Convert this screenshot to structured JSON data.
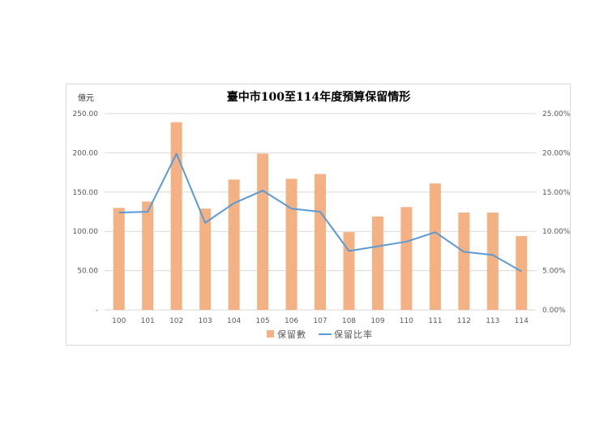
{
  "chart_data": {
    "type": "bar+line",
    "title": "臺中市100至114年度預算保留情形",
    "y_left_unit": "億元",
    "categories": [
      "100",
      "101",
      "102",
      "103",
      "104",
      "105",
      "106",
      "107",
      "108",
      "109",
      "110",
      "111",
      "112",
      "113",
      "114"
    ],
    "series": [
      {
        "name": "保留數",
        "type": "bar",
        "axis": "left",
        "color": "#f4b183",
        "values": [
          130,
          138,
          239,
          129,
          166,
          199,
          167,
          173,
          99,
          119,
          131,
          161,
          124,
          124,
          94
        ]
      },
      {
        "name": "保留比率",
        "type": "line",
        "axis": "right",
        "color": "#5b9bd5",
        "values": [
          12.4,
          12.5,
          19.9,
          11.1,
          13.6,
          15.2,
          12.9,
          12.5,
          7.5,
          8.1,
          8.7,
          9.9,
          7.4,
          7.0,
          4.9
        ]
      }
    ],
    "y_left": {
      "min": 0,
      "max": 250,
      "ticks": [
        "-",
        "50.00",
        "100.00",
        "150.00",
        "200.00",
        "250.00"
      ]
    },
    "y_right": {
      "min": 0,
      "max": 25,
      "ticks": [
        "0.00%",
        "5.00%",
        "10.00%",
        "15.00%",
        "20.00%",
        "25.00%"
      ]
    },
    "grid": true,
    "legend": "bottom"
  }
}
